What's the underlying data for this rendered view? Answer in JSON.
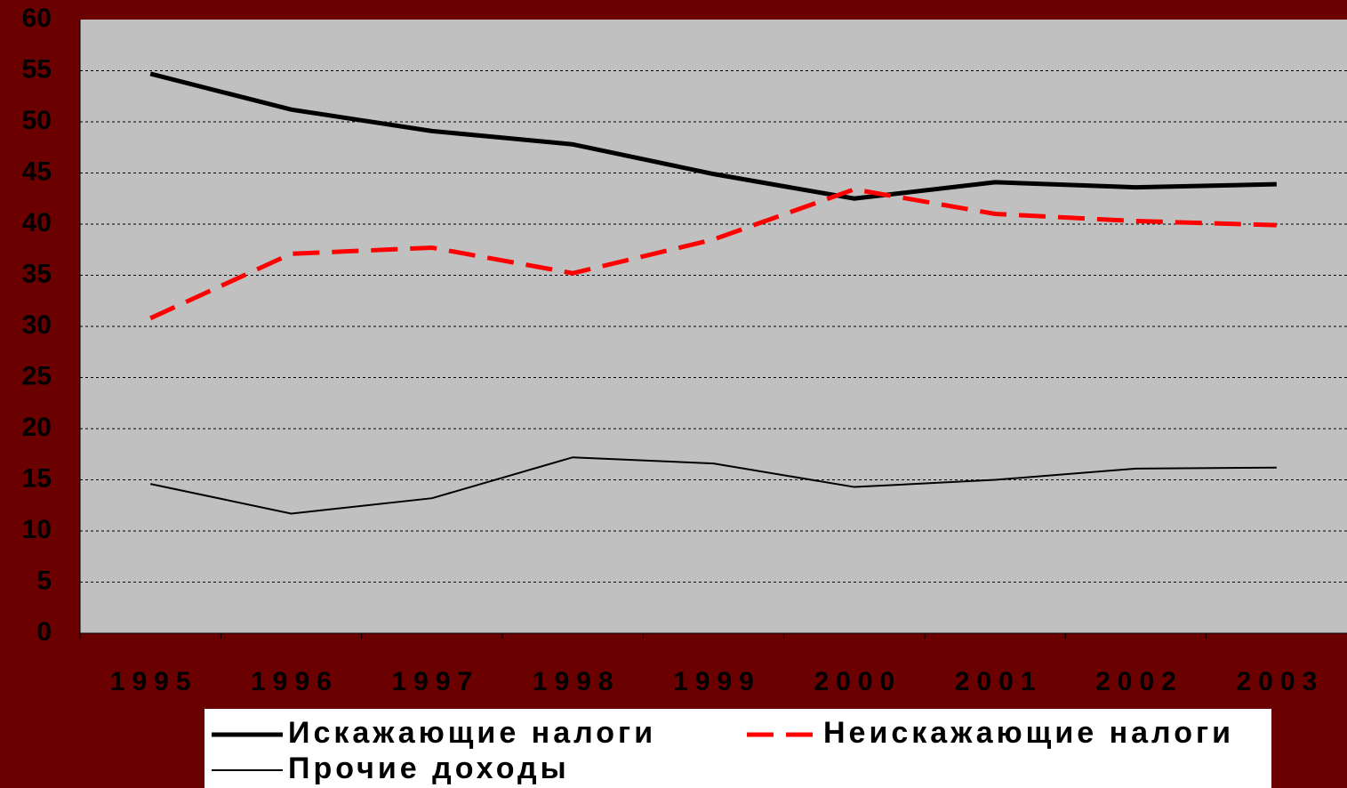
{
  "chart_data": {
    "type": "line",
    "categories": [
      "1995",
      "1996",
      "1997",
      "1998",
      "1999",
      "2000",
      "2001",
      "2002",
      "2003"
    ],
    "series": [
      {
        "name": "Искажающие налоги",
        "color": "#000000",
        "width": 5,
        "dash": false,
        "values": [
          54.7,
          51.2,
          49.1,
          47.8,
          44.9,
          42.5,
          44.1,
          43.6,
          43.9
        ]
      },
      {
        "name": "Неискажающие налоги",
        "color": "#ff0000",
        "width": 5,
        "dash": true,
        "values": [
          30.8,
          37.1,
          37.7,
          35.2,
          38.5,
          43.4,
          41.0,
          40.3,
          39.9
        ]
      },
      {
        "name": "Прочие доходы",
        "color": "#000000",
        "width": 2,
        "dash": false,
        "values": [
          14.6,
          11.7,
          13.2,
          17.2,
          16.6,
          14.3,
          15.0,
          16.1,
          16.2
        ]
      }
    ],
    "ylim": [
      0,
      60
    ],
    "yticks": [
      0,
      5,
      10,
      15,
      20,
      25,
      30,
      35,
      40,
      45,
      50,
      55,
      60
    ],
    "grid": true,
    "legend": "bottom"
  }
}
